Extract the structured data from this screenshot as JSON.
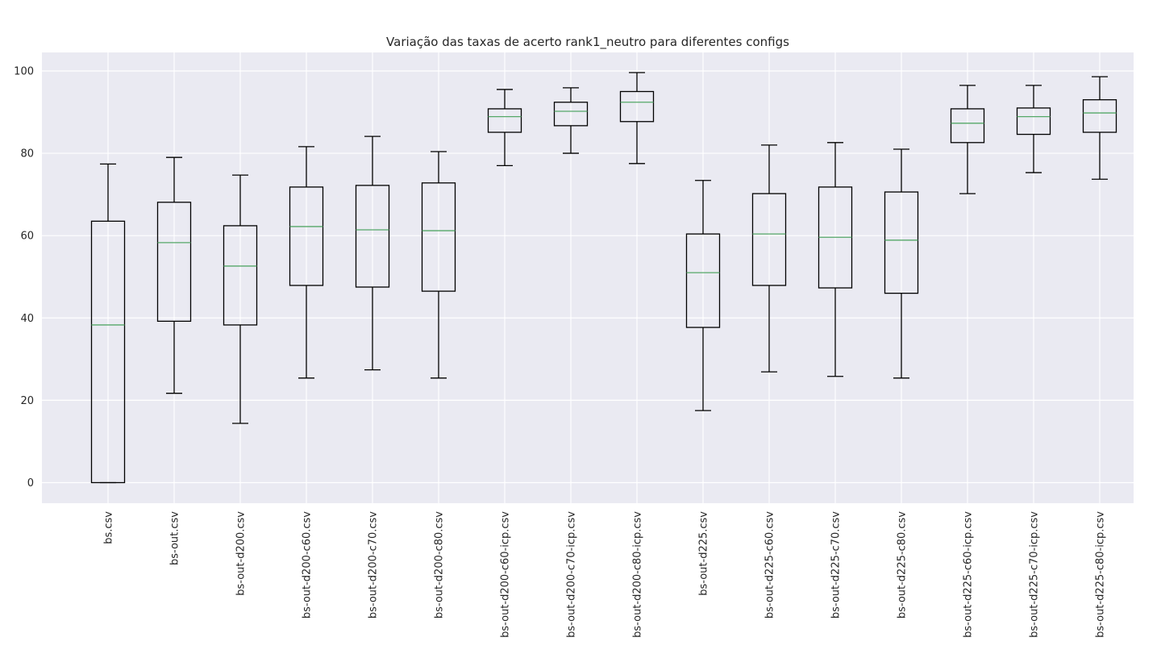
{
  "chart_data": {
    "type": "box",
    "title": "Variação das taxas de acerto rank1_neutro para diferentes configs",
    "xlabel": "",
    "ylabel": "",
    "ylim": [
      -5,
      104.5
    ],
    "yticks": [
      0,
      20,
      40,
      60,
      80,
      100
    ],
    "grid": true,
    "categories": [
      "bs.csv",
      "bs-out.csv",
      "bs-out-d200.csv",
      "bs-out-d200-c60.csv",
      "bs-out-d200-c70.csv",
      "bs-out-d200-c80.csv",
      "bs-out-d200-c60-icp.csv",
      "bs-out-d200-c70-icp.csv",
      "bs-out-d200-c80-icp.csv",
      "bs-out-d225.csv",
      "bs-out-d225-c60.csv",
      "bs-out-d225-c70.csv",
      "bs-out-d225-c80.csv",
      "bs-out-d225-c60-icp.csv",
      "bs-out-d225-c70-icp.csv",
      "bs-out-d225-c80-icp.csv"
    ],
    "boxes": [
      {
        "whisker_low": 0.0,
        "q1": 0.0,
        "median": 38.3,
        "q3": 63.5,
        "whisker_high": 77.4
      },
      {
        "whisker_low": 21.7,
        "q1": 39.2,
        "median": 58.3,
        "q3": 68.1,
        "whisker_high": 79.0
      },
      {
        "whisker_low": 14.4,
        "q1": 38.3,
        "median": 52.6,
        "q3": 62.4,
        "whisker_high": 74.7
      },
      {
        "whisker_low": 25.4,
        "q1": 47.9,
        "median": 62.2,
        "q3": 71.8,
        "whisker_high": 81.6
      },
      {
        "whisker_low": 27.4,
        "q1": 47.5,
        "median": 61.4,
        "q3": 72.2,
        "whisker_high": 84.1
      },
      {
        "whisker_low": 25.4,
        "q1": 46.5,
        "median": 61.2,
        "q3": 72.8,
        "whisker_high": 80.4
      },
      {
        "whisker_low": 77.0,
        "q1": 85.1,
        "median": 88.9,
        "q3": 90.8,
        "whisker_high": 95.5
      },
      {
        "whisker_low": 80.0,
        "q1": 86.7,
        "median": 90.2,
        "q3": 92.4,
        "whisker_high": 95.9
      },
      {
        "whisker_low": 77.5,
        "q1": 87.7,
        "median": 92.4,
        "q3": 95.0,
        "whisker_high": 99.6
      },
      {
        "whisker_low": 17.5,
        "q1": 37.7,
        "median": 51.0,
        "q3": 60.4,
        "whisker_high": 73.4
      },
      {
        "whisker_low": 26.9,
        "q1": 47.9,
        "median": 60.4,
        "q3": 70.2,
        "whisker_high": 82.0
      },
      {
        "whisker_low": 25.8,
        "q1": 47.3,
        "median": 59.6,
        "q3": 71.8,
        "whisker_high": 82.6
      },
      {
        "whisker_low": 25.4,
        "q1": 46.0,
        "median": 58.9,
        "q3": 70.6,
        "whisker_high": 81.0
      },
      {
        "whisker_low": 70.2,
        "q1": 82.6,
        "median": 87.3,
        "q3": 90.8,
        "whisker_high": 96.5
      },
      {
        "whisker_low": 75.3,
        "q1": 84.6,
        "median": 88.9,
        "q3": 91.0,
        "whisker_high": 96.5
      },
      {
        "whisker_low": 73.7,
        "q1": 85.1,
        "median": 89.8,
        "q3": 93.0,
        "whisker_high": 98.6
      }
    ],
    "colors": {
      "plot_background": "#eaeaf2",
      "grid": "#ffffff",
      "box": "#000000",
      "median": "#55a868",
      "text": "#262626"
    }
  }
}
